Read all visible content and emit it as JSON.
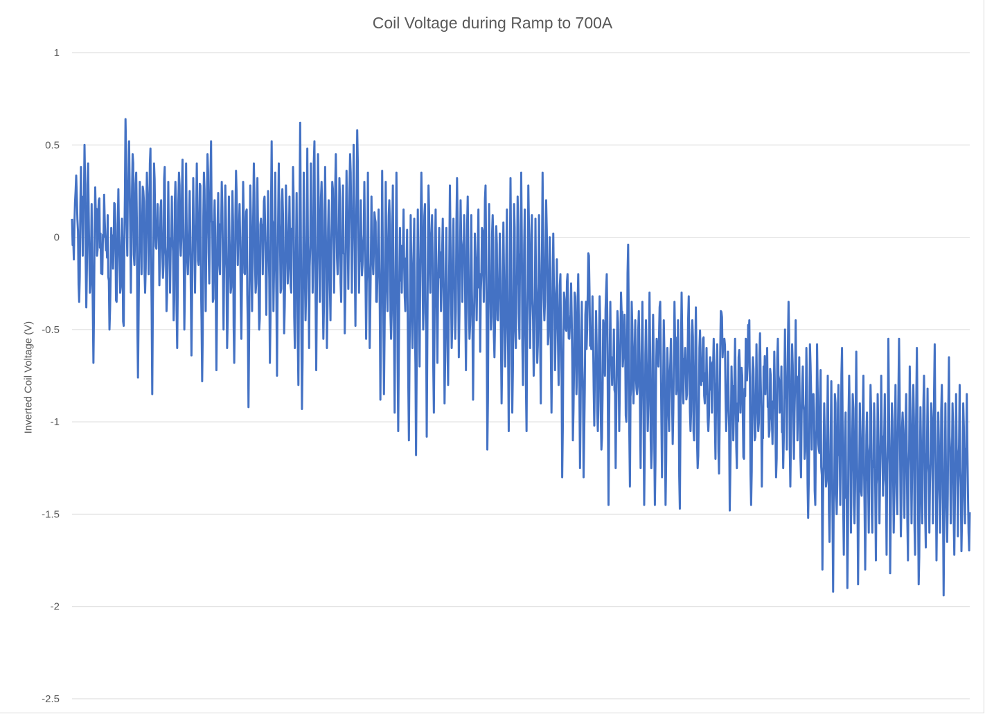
{
  "chart_data": {
    "type": "line",
    "title": "Coil Voltage during Ramp to 700A",
    "xlabel": "",
    "ylabel": "Inverted Coil Voltage (V)",
    "ylim": [
      -2.5,
      1
    ],
    "y_ticks": [
      "1",
      "0.5",
      "0",
      "-0.5",
      "-1",
      "-1.5",
      "-2",
      "-2.5"
    ],
    "y_tick_values": [
      1,
      0.5,
      0,
      -0.5,
      -1,
      -1.5,
      -2,
      -2.5
    ],
    "grid": true,
    "legend": "none",
    "x_ticks_shown": false,
    "series_color": "#4472C4",
    "series": [
      {
        "values": [
          0.1,
          -0.12,
          0.25,
          0.1,
          -0.35,
          0.38,
          -0.1,
          0.5,
          -0.38,
          0.4,
          -0.3,
          0.18,
          -0.68,
          0.27,
          -0.1,
          0.2,
          0.02,
          -0.2,
          0.23,
          -0.07,
          0.12,
          -0.5,
          0.05,
          -0.17,
          0.18,
          -0.35,
          0.26,
          -0.3,
          0.1,
          -0.48,
          0.64,
          -0.1,
          0.52,
          -0.3,
          0.45,
          -0.15,
          0.35,
          -0.76,
          0.3,
          -0.2,
          0.25,
          -0.3,
          0.35,
          -0.2,
          0.48,
          -0.85,
          0.4,
          -0.05,
          0.18,
          -0.26,
          0.2,
          -0.22,
          0.38,
          -0.4,
          0.3,
          -0.3,
          0.22,
          -0.45,
          0.3,
          -0.6,
          0.35,
          -0.1,
          0.42,
          -0.5,
          0.4,
          -0.2,
          0.25,
          -0.64,
          0.32,
          -0.3,
          0.4,
          -0.15,
          0.28,
          -0.78,
          0.35,
          -0.4,
          0.45,
          -0.25,
          0.52,
          -0.35,
          0.2,
          -0.72,
          0.24,
          -0.2,
          0.3,
          -0.5,
          0.28,
          -0.6,
          0.22,
          -0.3,
          0.25,
          -0.68,
          0.36,
          -0.15,
          0.18,
          -0.55,
          0.3,
          -0.2,
          0.15,
          -0.92,
          0.28,
          -0.4,
          0.4,
          -0.3,
          0.32,
          -0.5,
          0.1,
          -0.2,
          0.22,
          -0.42,
          0.25,
          -0.68,
          0.52,
          -0.4,
          0.35,
          -0.75,
          0.4,
          -0.3,
          0.26,
          -0.52,
          0.28,
          -0.25,
          0.22,
          -0.3,
          0.38,
          -0.6,
          0.24,
          -0.8,
          0.62,
          -0.93,
          0.35,
          -0.45,
          0.48,
          -0.6,
          0.4,
          -0.3,
          0.52,
          -0.72,
          0.45,
          -0.35,
          0.3,
          -0.55,
          0.38,
          -0.6,
          0.2,
          -0.45,
          0.3,
          -0.3,
          0.45,
          -0.2,
          0.32,
          -0.35,
          0.28,
          -0.52,
          0.36,
          -0.28,
          0.45,
          -0.3,
          0.5,
          -0.48,
          0.58,
          -0.3,
          0.2,
          -0.15,
          0.3,
          -0.55,
          0.35,
          -0.6,
          0.22,
          -0.2,
          0.1,
          -0.35,
          0.15,
          -0.88,
          0.36,
          -0.85,
          0.3,
          -0.4,
          0.2,
          -0.55,
          0.28,
          -0.95,
          0.35,
          -1.05,
          0.05,
          -0.3,
          0.15,
          -0.4,
          0.04,
          -1.1,
          0.12,
          -0.6,
          0.1,
          -1.18,
          0.15,
          -0.7,
          0.35,
          -0.5,
          0.18,
          -1.08,
          0.28,
          -0.3,
          0.12,
          -0.95,
          0.15,
          -0.68,
          0.05,
          -0.4,
          0.1,
          -0.9,
          0.05,
          -0.8,
          0.28,
          -0.6,
          0.1,
          -0.55,
          0.32,
          -0.65,
          0.2,
          -0.35,
          0.12,
          -0.72,
          0.22,
          -0.55,
          0.12,
          -0.88,
          0.02,
          -0.45,
          0.15,
          -0.62,
          0.05,
          -0.35,
          0.28,
          -1.15,
          0.18,
          -0.5,
          0.12,
          -0.65,
          0.06,
          -0.45,
          0.02,
          -0.9,
          0.08,
          -0.7,
          0.15,
          -1.05,
          0.32,
          -0.95,
          0.18,
          -0.6,
          0.22,
          -0.55,
          0.35,
          -0.8,
          0.15,
          -1.05,
          0.28,
          -0.6,
          0.12,
          -0.75,
          0.1,
          -0.68,
          0.12,
          -0.9,
          0.35,
          -0.45,
          0.2,
          -0.58,
          0.0,
          -0.95,
          0.02,
          -0.72,
          -0.12,
          -0.8,
          -0.2,
          -1.3,
          -0.3,
          -0.5,
          -0.2,
          -0.55,
          -0.25,
          -1.1,
          -0.3,
          -0.85,
          -0.2,
          -1.25,
          -0.35,
          -1.3,
          -0.42,
          -0.5,
          -0.1,
          -0.58,
          -0.32,
          -1.02,
          -0.4,
          -1.05,
          -0.32,
          -1.15,
          -0.45,
          -0.75,
          -0.2,
          -1.45,
          -0.35,
          -0.8,
          -0.5,
          -1.25,
          -0.4,
          -1.05,
          -0.3,
          -0.7,
          -0.42,
          -1.0,
          -0.04,
          -1.35,
          -0.35,
          -0.9,
          -0.45,
          -0.85,
          -0.4,
          -1.25,
          -0.35,
          -1.45,
          -0.45,
          -1.05,
          -0.3,
          -1.25,
          -0.42,
          -1.45,
          -0.55,
          -0.7,
          -0.35,
          -1.3,
          -0.45,
          -1.45,
          -0.6,
          -1.05,
          -0.55,
          -1.12,
          -0.35,
          -0.85,
          -0.45,
          -1.47,
          -0.3,
          -0.9,
          -0.6,
          -0.85,
          -0.32,
          -1.05,
          -0.45,
          -1.1,
          -0.38,
          -1.25,
          -0.6,
          -0.8,
          -0.55,
          -0.9,
          -0.6,
          -1.05,
          -0.65,
          -0.95,
          -0.55,
          -1.2,
          -0.58,
          -1.28,
          -0.4,
          -0.65,
          -0.55,
          -1.05,
          -0.62,
          -1.48,
          -0.7,
          -1.1,
          -0.55,
          -1.25,
          -0.65,
          -0.95,
          -0.75,
          -1.2,
          -0.55,
          -0.7,
          -0.45,
          -1.45,
          -0.65,
          -1.1,
          -0.58,
          -1.05,
          -0.52,
          -1.35,
          -0.7,
          -0.85,
          -0.6,
          -1.08,
          -0.75,
          -1.12,
          -0.62,
          -1.3,
          -0.55,
          -0.95,
          -0.7,
          -1.25,
          -0.5,
          -1.15,
          -0.35,
          -1.35,
          -0.58,
          -1.2,
          -0.45,
          -1.1,
          -0.65,
          -1.3,
          -0.7,
          -1.2,
          -0.6,
          -1.52,
          -0.58,
          -1.15,
          -0.85,
          -1.45,
          -0.58,
          -1.15,
          -0.72,
          -1.8,
          -0.9,
          -1.35,
          -0.75,
          -1.65,
          -0.78,
          -1.92,
          -0.85,
          -1.5,
          -0.8,
          -1.45,
          -0.6,
          -1.72,
          -0.95,
          -1.9,
          -0.75,
          -1.6,
          -0.85,
          -1.55,
          -0.62,
          -1.88,
          -0.9,
          -1.4,
          -0.75,
          -1.8,
          -0.95,
          -1.6,
          -0.8,
          -1.6,
          -0.9,
          -1.75,
          -0.85,
          -1.55,
          -0.75,
          -1.4,
          -0.85,
          -1.72,
          -0.55,
          -1.82,
          -0.9,
          -1.6,
          -0.8,
          -1.5,
          -0.55,
          -1.62,
          -0.95,
          -1.52,
          -0.85,
          -1.75,
          -0.7,
          -1.55,
          -0.8,
          -1.72,
          -0.6,
          -1.88,
          -0.92,
          -1.55,
          -0.75,
          -1.68,
          -0.82,
          -1.6,
          -0.9,
          -1.55,
          -0.58,
          -1.75,
          -0.95,
          -1.6,
          -0.8,
          -1.94,
          -0.9,
          -1.65,
          -0.65,
          -1.55,
          -0.9,
          -1.72,
          -0.85,
          -1.62,
          -0.8,
          -1.7,
          -0.9,
          -1.55,
          -0.85,
          -1.6
        ],
        "noise_amplitude_v": 0.35
      }
    ]
  }
}
